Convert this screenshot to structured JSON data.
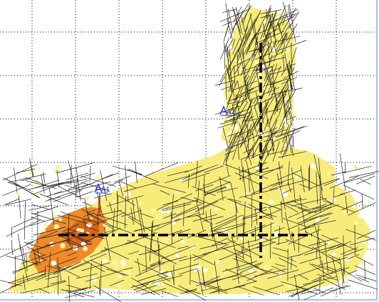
{
  "viewport": {
    "background": "#ffffff",
    "grid": "dotted",
    "grid_color": "#000000",
    "border_color": "#a8c4e0"
  },
  "fracture_colors": {
    "fill_yellow": "#f7ec7a",
    "fill_yellow_light": "#fbf3a0",
    "fill_orange": "#ef8b2a",
    "fill_dark_orange": "#d9641a",
    "stroke": "#222222"
  },
  "wells": [
    {
      "name": "A1",
      "icon": "well-icon",
      "color": "#1a2fd0"
    },
    {
      "name": "A2",
      "icon": "well-icon",
      "color": "#1a2fd0"
    }
  ]
}
